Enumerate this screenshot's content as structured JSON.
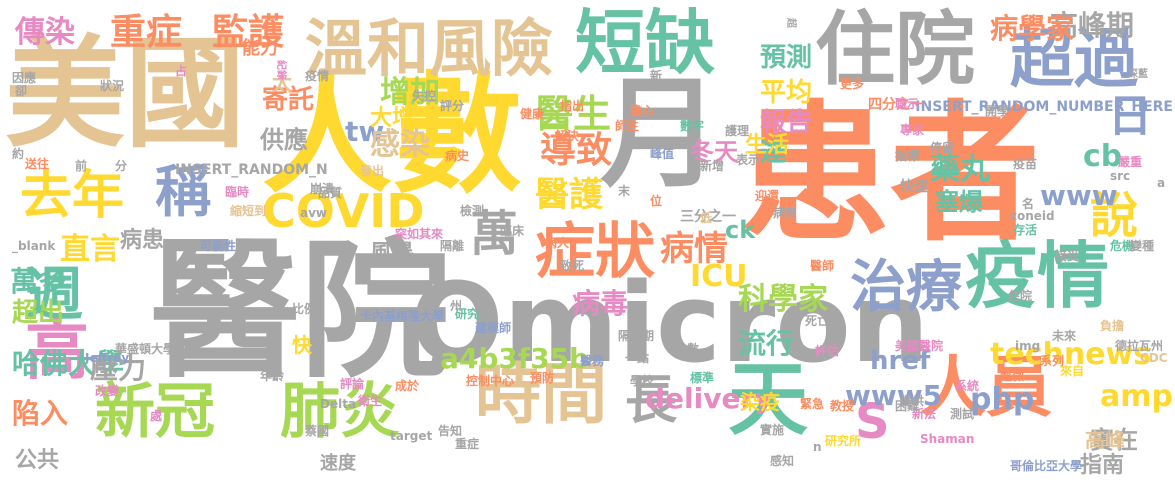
{
  "colors": {
    "gray": "#a6a6a6",
    "orange": "#fc8d62",
    "green": "#a6d854",
    "yellow": "#ffd92f",
    "tan": "#e5c494",
    "blue": "#8da0cb",
    "pink": "#e78ac3",
    "teal": "#66c2a5"
  },
  "words": [
    {
      "text": "醫院",
      "color": "gray"
    },
    {
      "text": "Omicron",
      "color": "gray"
    },
    {
      "text": "患者",
      "color": "orange"
    },
    {
      "text": "美國",
      "color": "tan"
    },
    {
      "text": "人數",
      "color": "yellow"
    },
    {
      "text": "月",
      "color": "gray"
    },
    {
      "text": "住院",
      "color": "gray"
    },
    {
      "text": "短缺",
      "color": "teal"
    },
    {
      "text": "溫和風險",
      "color": "tan"
    },
    {
      "text": "超過",
      "color": "blue"
    },
    {
      "text": "疫情",
      "color": "teal"
    },
    {
      "text": "人員",
      "color": "orange"
    },
    {
      "text": "時間",
      "color": "tan"
    },
    {
      "text": "天",
      "color": "teal"
    },
    {
      "text": "新冠",
      "color": "green"
    },
    {
      "text": "肺炎",
      "color": "green"
    },
    {
      "text": "症狀",
      "color": "orange"
    },
    {
      "text": "治療",
      "color": "blue"
    },
    {
      "text": "去年",
      "color": "yellow"
    },
    {
      "text": "稱",
      "color": "blue"
    },
    {
      "text": "COVID",
      "color": "yellow"
    },
    {
      "text": "週",
      "color": "teal"
    },
    {
      "text": "高",
      "color": "pink"
    },
    {
      "text": "長",
      "color": "gray"
    },
    {
      "text": "萬",
      "color": "gray"
    },
    {
      "text": "說",
      "color": "yellow"
    },
    {
      "text": "日",
      "color": "blue"
    },
    {
      "text": "S",
      "color": "pink"
    },
    {
      "text": "重症",
      "color": "orange"
    },
    {
      "text": "監護",
      "color": "orange"
    },
    {
      "text": "傳染",
      "color": "pink"
    },
    {
      "text": "醫生",
      "color": "green"
    },
    {
      "text": "導致",
      "color": "orange"
    },
    {
      "text": "醫護",
      "color": "yellow"
    },
    {
      "text": "www5",
      "color": "blue"
    },
    {
      "text": "technews",
      "color": "yellow"
    },
    {
      "text": "delivery",
      "color": "pink"
    },
    {
      "text": "科學家",
      "color": "green"
    },
    {
      "text": "病情",
      "color": "orange"
    },
    {
      "text": "ICU",
      "color": "yellow"
    },
    {
      "text": "tw",
      "color": "blue"
    },
    {
      "text": "cb",
      "color": "teal"
    },
    {
      "text": "www",
      "color": "blue"
    },
    {
      "text": "php",
      "color": "blue"
    },
    {
      "text": "amp",
      "color": "yellow"
    },
    {
      "text": "藥丸",
      "color": "teal"
    },
    {
      "text": "高峰期",
      "color": "gray"
    },
    {
      "text": "病學家",
      "color": "orange"
    },
    {
      "text": "增加",
      "color": "green"
    },
    {
      "text": "感染",
      "color": "tan"
    },
    {
      "text": "直言",
      "color": "yellow"
    },
    {
      "text": "萬多",
      "color": "teal"
    },
    {
      "text": "超出",
      "color": "green"
    },
    {
      "text": "陷入",
      "color": "orange"
    },
    {
      "text": "哈佛大學",
      "color": "teal"
    },
    {
      "text": "壓力",
      "color": "gray"
    },
    {
      "text": "流行",
      "color": "teal"
    },
    {
      "text": "平均",
      "color": "yellow"
    },
    {
      "text": "報告",
      "color": "pink"
    },
    {
      "text": "預測",
      "color": "teal"
    },
    {
      "text": "達",
      "color": "teal"
    },
    {
      "text": "a4b3f35b",
      "color": "green"
    },
    {
      "text": "實在",
      "color": "gray"
    },
    {
      "text": "指南",
      "color": "gray"
    },
    {
      "text": "高峰",
      "color": "tan"
    },
    {
      "text": "寄託",
      "color": "orange"
    },
    {
      "text": "供應",
      "color": "gray"
    },
    {
      "text": "公共",
      "color": "gray"
    },
    {
      "text": "病毒",
      "color": "pink"
    },
    {
      "text": "病患",
      "color": "gray"
    },
    {
      "text": "冬天",
      "color": "pink"
    },
    {
      "text": "塞爆",
      "color": "teal"
    },
    {
      "text": "href",
      "color": "blue"
    },
    {
      "text": "ck",
      "color": "teal"
    },
    {
      "text": "速度",
      "color": "gray"
    },
    {
      "text": "風暴",
      "color": "gray"
    },
    {
      "text": "大增",
      "color": "yellow"
    },
    {
      "text": "太",
      "color": "tan"
    },
    {
      "text": "快",
      "color": "yellow"
    },
    {
      "text": "生活",
      "color": "yellow"
    },
    {
      "text": "能力",
      "color": "orange"
    },
    {
      "text": "染疫",
      "color": "yellow"
    },
    {
      "text": "INSERT_RANDOM_NUMBER_HERE",
      "color": "blue"
    },
    {
      "text": "INSERT_RANDOM_N",
      "color": "gray"
    },
    {
      "text": "卡內基梅隆大學",
      "color": "blue"
    },
    {
      "text": "華盛頓大學",
      "color": "gray"
    },
    {
      "text": "哥倫比亞大學",
      "color": "blue"
    },
    {
      "text": "美國醫院",
      "color": "pink"
    },
    {
      "text": "研究所",
      "color": "yellow"
    },
    {
      "text": "Shaman",
      "color": "pink"
    },
    {
      "text": "Delta",
      "color": "gray"
    },
    {
      "text": "Jeffrey",
      "color": "blue"
    },
    {
      "text": "CDC",
      "color": "tan"
    },
    {
      "text": "target",
      "color": "gray"
    },
    {
      "text": "_blank",
      "color": "gray"
    },
    {
      "text": "avw",
      "color": "gray"
    },
    {
      "text": "img",
      "color": "gray"
    },
    {
      "text": "src",
      "color": "gray"
    },
    {
      "text": "zoneid",
      "color": "gray"
    },
    {
      "text": "德拉瓦州",
      "color": "gray"
    },
    {
      "text": "四分之一",
      "color": "orange"
    },
    {
      "text": "三分之一",
      "color": "gray"
    },
    {
      "text": "突如其來",
      "color": "pink"
    },
    {
      "text": "可能性",
      "color": "blue"
    },
    {
      "text": "研究",
      "color": "teal"
    },
    {
      "text": "建模師",
      "color": "blue"
    },
    {
      "text": "病人",
      "color": "orange"
    },
    {
      "text": "隔離期",
      "color": "gray"
    },
    {
      "text": "控制中心",
      "color": "orange"
    },
    {
      "text": "預防",
      "color": "orange"
    },
    {
      "text": "標準",
      "color": "teal"
    },
    {
      "text": "一點",
      "color": "gray"
    },
    {
      "text": "醫務",
      "color": "blue"
    },
    {
      "text": "敞數",
      "color": "gray"
    },
    {
      "text": "重症",
      "color": "gray"
    },
    {
      "text": "改變",
      "color": "pink"
    },
    {
      "text": "年齡",
      "color": "gray"
    },
    {
      "text": "比例",
      "color": "gray"
    },
    {
      "text": "評論",
      "color": "pink"
    },
    {
      "text": "衛生",
      "color": "pink"
    },
    {
      "text": "成於",
      "color": "orange"
    },
    {
      "text": "教授",
      "color": "orange"
    },
    {
      "text": "實施",
      "color": "gray"
    },
    {
      "text": "感知",
      "color": "gray"
    },
    {
      "text": "新法",
      "color": "pink"
    },
    {
      "text": "測試",
      "color": "gray"
    },
    {
      "text": "緊急",
      "color": "orange"
    },
    {
      "text": "系統",
      "color": "pink"
    },
    {
      "text": "死亡",
      "color": "gray"
    },
    {
      "text": "評估",
      "color": "pink"
    },
    {
      "text": "提供",
      "color": "gray"
    },
    {
      "text": "未來",
      "color": "gray"
    },
    {
      "text": "負擔",
      "color": "tan"
    },
    {
      "text": "系列",
      "color": "orange"
    },
    {
      "text": "輕微",
      "color": "orange"
    },
    {
      "text": "來自",
      "color": "yellow"
    },
    {
      "text": "住院",
      "color": "gray"
    },
    {
      "text": "存活",
      "color": "teal"
    },
    {
      "text": "危機",
      "color": "teal"
    },
    {
      "text": "接受",
      "color": "gray"
    },
    {
      "text": "名",
      "color": "gray"
    },
    {
      "text": "快速",
      "color": "gray"
    },
    {
      "text": "停留",
      "color": "gray"
    },
    {
      "text": "指標",
      "color": "gray"
    },
    {
      "text": "嚴重",
      "color": "pink"
    },
    {
      "text": "專家",
      "color": "pink"
    },
    {
      "text": "職示",
      "color": "pink"
    },
    {
      "text": "開學",
      "color": "gray"
    },
    {
      "text": "更多",
      "color": "orange"
    },
    {
      "text": "護理",
      "color": "gray"
    },
    {
      "text": "新增",
      "color": "gray"
    },
    {
      "text": "峰值",
      "color": "blue"
    },
    {
      "text": "數字",
      "color": "teal"
    },
    {
      "text": "擔心",
      "color": "orange"
    },
    {
      "text": "師生",
      "color": "orange"
    },
    {
      "text": "健康",
      "color": "orange"
    },
    {
      "text": "解決",
      "color": "orange"
    },
    {
      "text": "指出",
      "color": "orange"
    },
    {
      "text": "病史",
      "color": "orange"
    },
    {
      "text": "發出",
      "color": "tan"
    },
    {
      "text": "品質",
      "color": "gray"
    },
    {
      "text": "崩潰",
      "color": "gray"
    },
    {
      "text": "臨時",
      "color": "pink"
    },
    {
      "text": "縮短到",
      "color": "tan"
    },
    {
      "text": "送往",
      "color": "orange"
    },
    {
      "text": "因應",
      "color": "gray"
    },
    {
      "text": "卻",
      "color": "gray"
    },
    {
      "text": "狀況",
      "color": "gray"
    },
    {
      "text": "末",
      "color": "gray"
    },
    {
      "text": "位",
      "color": "orange"
    },
    {
      "text": "迎還",
      "color": "orange"
    },
    {
      "text": "蔡國",
      "color": "gray"
    },
    {
      "text": "前",
      "color": "gray"
    },
    {
      "text": "分",
      "color": "gray"
    },
    {
      "text": "約",
      "color": "gray"
    },
    {
      "text": "學校",
      "color": "gray"
    },
    {
      "text": "告知",
      "color": "gray"
    },
    {
      "text": "處",
      "color": "pink"
    },
    {
      "text": "n",
      "color": "gray"
    },
    {
      "text": "a",
      "color": "gray"
    },
    {
      "text": "令",
      "color": "gray"
    },
    {
      "text": "新",
      "color": "gray"
    },
    {
      "text": "占",
      "color": "pink"
    },
    {
      "text": "超",
      "color": "gray"
    },
    {
      "text": "深藍",
      "color": "gray"
    },
    {
      "text": "失控",
      "color": "gray"
    },
    {
      "text": "疫情",
      "color": "gray"
    },
    {
      "text": "低",
      "color": "tan"
    },
    {
      "text": "疫苗",
      "color": "gray"
    },
    {
      "text": "評分",
      "color": "gray"
    },
    {
      "text": "檢測",
      "color": "gray"
    },
    {
      "text": "隔離",
      "color": "gray"
    },
    {
      "text": "臨床",
      "color": "gray"
    },
    {
      "text": "致死",
      "color": "gray"
    },
    {
      "text": "紀錄",
      "color": "pink"
    },
    {
      "text": "困難",
      "color": "gray"
    },
    {
      "text": "變種",
      "color": "gray"
    },
    {
      "text": "州",
      "color": "gray"
    },
    {
      "text": "表示",
      "color": "gray"
    },
    {
      "text": "病房",
      "color": "gray"
    },
    {
      "text": "醫師",
      "color": "orange"
    }
  ]
}
